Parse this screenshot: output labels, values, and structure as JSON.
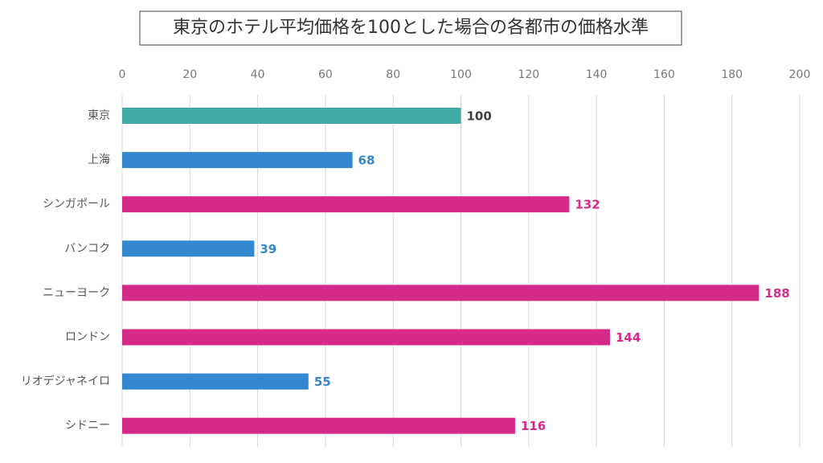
{
  "chart_data": {
    "type": "hbar",
    "title": "東京のホテル平均価格を100とした場合の各都市の価格水準",
    "categories": [
      "東京",
      "上海",
      "シンガポール",
      "バンコク",
      "ニューヨーク",
      "ロンドン",
      "リオデジャネイロ",
      "シドニー"
    ],
    "values": [
      100,
      68,
      132,
      39,
      188,
      144,
      55,
      116
    ],
    "colors": [
      "#40aaa6",
      "#3388d0",
      "#d62a8a",
      "#3388d0",
      "#d62a8a",
      "#d62a8a",
      "#3388d0",
      "#d62a8a"
    ],
    "label_colors": [
      "#404040",
      "#3388d0",
      "#d62a8a",
      "#3388d0",
      "#d62a8a",
      "#d62a8a",
      "#3388d0",
      "#d62a8a"
    ],
    "xlim": [
      0,
      200
    ],
    "xticks": [
      0,
      20,
      40,
      60,
      80,
      100,
      120,
      140,
      160,
      180,
      200
    ],
    "grid": true
  }
}
